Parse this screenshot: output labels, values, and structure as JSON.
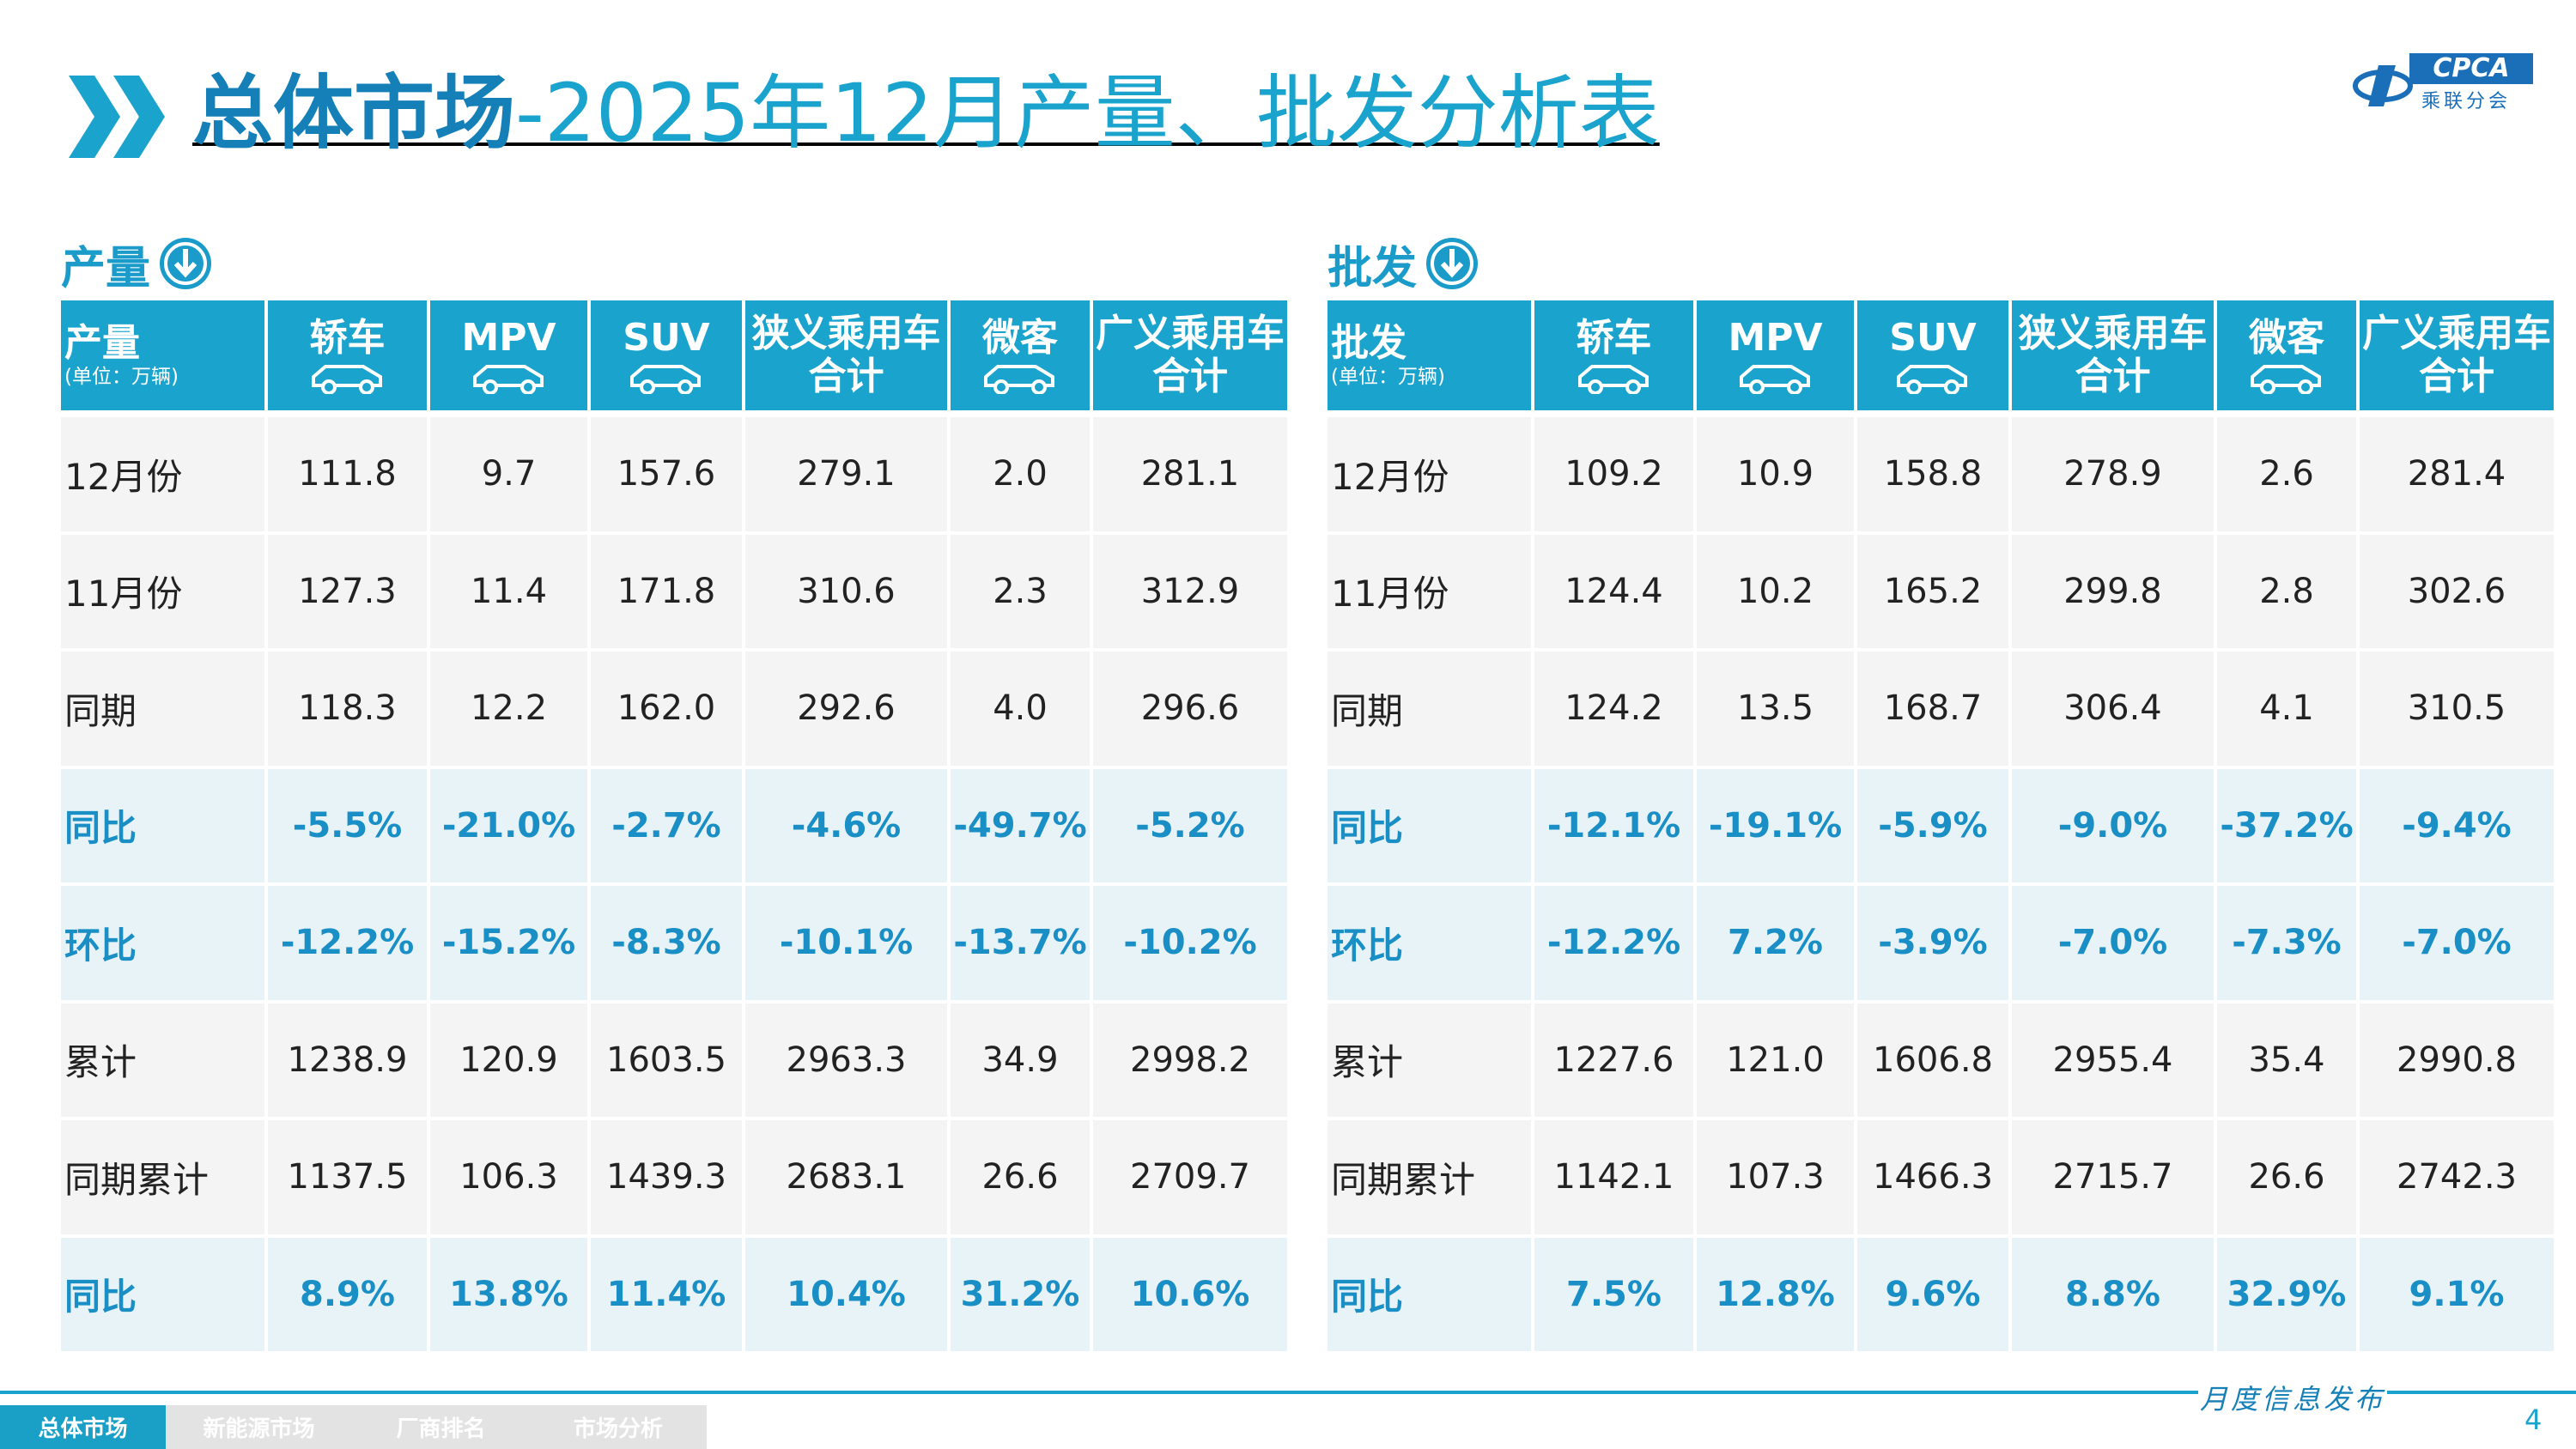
{
  "header": {
    "title_main": "总体市场",
    "title_sub": "-2025年12月产量、批发分析表",
    "logo": "CPCA",
    "logo_sub": "乘联分会"
  },
  "tables": [
    {
      "section": "产量",
      "corner": "产量",
      "unit": "(单位：万辆)",
      "columns": [
        [
          "轿车"
        ],
        [
          "MPV"
        ],
        [
          "SUV"
        ],
        [
          "狭义乘用车",
          "合计"
        ],
        [
          "微客"
        ],
        [
          "广义乘用车",
          "合计"
        ]
      ],
      "rows": [
        {
          "label": "12月份",
          "values": [
            "111.8",
            "9.7",
            "157.6",
            "279.1",
            "2.0",
            "281.1"
          ]
        },
        {
          "label": "11月份",
          "values": [
            "127.3",
            "11.4",
            "171.8",
            "310.6",
            "2.3",
            "312.9"
          ]
        },
        {
          "label": "同期",
          "values": [
            "118.3",
            "12.2",
            "162.0",
            "292.6",
            "4.0",
            "296.6"
          ]
        },
        {
          "label": "同比",
          "values": [
            "-5.5%",
            "-21.0%",
            "-2.7%",
            "-4.6%",
            "-49.7%",
            "-5.2%"
          ],
          "emphasis": true
        },
        {
          "label": "环比",
          "values": [
            "-12.2%",
            "-15.2%",
            "-8.3%",
            "-10.1%",
            "-13.7%",
            "-10.2%"
          ],
          "emphasis": true
        },
        {
          "label": "累计",
          "values": [
            "1238.9",
            "120.9",
            "1603.5",
            "2963.3",
            "34.9",
            "2998.2"
          ]
        },
        {
          "label": "同期累计",
          "values": [
            "1137.5",
            "106.3",
            "1439.3",
            "2683.1",
            "26.6",
            "2709.7"
          ]
        },
        {
          "label": "同比",
          "values": [
            "8.9%",
            "13.8%",
            "11.4%",
            "10.4%",
            "31.2%",
            "10.6%"
          ],
          "emphasis": true
        }
      ]
    },
    {
      "section": "批发",
      "corner": "批发",
      "unit": "(单位：万辆)",
      "columns": [
        [
          "轿车"
        ],
        [
          "MPV"
        ],
        [
          "SUV"
        ],
        [
          "狭义乘用车",
          "合计"
        ],
        [
          "微客"
        ],
        [
          "广义乘用车",
          "合计"
        ]
      ],
      "rows": [
        {
          "label": "12月份",
          "values": [
            "109.2",
            "10.9",
            "158.8",
            "278.9",
            "2.6",
            "281.4"
          ]
        },
        {
          "label": "11月份",
          "values": [
            "124.4",
            "10.2",
            "165.2",
            "299.8",
            "2.8",
            "302.6"
          ]
        },
        {
          "label": "同期",
          "values": [
            "124.2",
            "13.5",
            "168.7",
            "306.4",
            "4.1",
            "310.5"
          ]
        },
        {
          "label": "同比",
          "values": [
            "-12.1%",
            "-19.1%",
            "-5.9%",
            "-9.0%",
            "-37.2%",
            "-9.4%"
          ],
          "emphasis": true
        },
        {
          "label": "环比",
          "values": [
            "-12.2%",
            "7.2%",
            "-3.9%",
            "-7.0%",
            "-7.3%",
            "-7.0%"
          ],
          "emphasis": true
        },
        {
          "label": "累计",
          "values": [
            "1227.6",
            "121.0",
            "1606.8",
            "2955.4",
            "35.4",
            "2990.8"
          ]
        },
        {
          "label": "同期累计",
          "values": [
            "1142.1",
            "107.3",
            "1466.3",
            "2715.7",
            "26.6",
            "2742.3"
          ]
        },
        {
          "label": "同比",
          "values": [
            "7.5%",
            "12.8%",
            "9.6%",
            "8.8%",
            "32.9%",
            "9.1%"
          ],
          "emphasis": true
        }
      ]
    }
  ],
  "footer": {
    "tabs": [
      "总体市场",
      "新能源市场",
      "厂商排名",
      "市场分析"
    ],
    "active": 0,
    "caption": "月度信息发布",
    "page": "4"
  }
}
